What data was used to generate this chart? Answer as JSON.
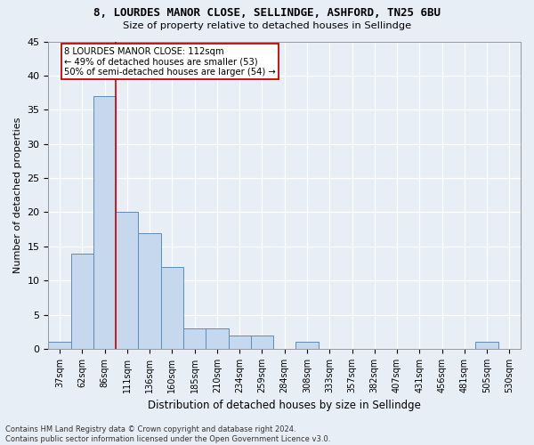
{
  "title1": "8, LOURDES MANOR CLOSE, SELLINDGE, ASHFORD, TN25 6BU",
  "title2": "Size of property relative to detached houses in Sellindge",
  "xlabel": "Distribution of detached houses by size in Sellindge",
  "ylabel": "Number of detached properties",
  "footnote1": "Contains HM Land Registry data © Crown copyright and database right 2024.",
  "footnote2": "Contains public sector information licensed under the Open Government Licence v3.0.",
  "bin_labels": [
    "37sqm",
    "62sqm",
    "86sqm",
    "111sqm",
    "136sqm",
    "160sqm",
    "185sqm",
    "210sqm",
    "234sqm",
    "259sqm",
    "284sqm",
    "308sqm",
    "333sqm",
    "357sqm",
    "382sqm",
    "407sqm",
    "431sqm",
    "456sqm",
    "481sqm",
    "505sqm",
    "530sqm"
  ],
  "values": [
    1,
    14,
    37,
    20,
    17,
    12,
    3,
    3,
    2,
    2,
    0,
    1,
    0,
    0,
    0,
    0,
    0,
    0,
    0,
    1,
    0
  ],
  "bar_color": "#c5d8ed",
  "bar_edge_color": "#5b8db8",
  "background_color": "#e8eef6",
  "grid_color": "#ffffff",
  "annotation_box_color": "#cc0000",
  "annotation_line_color": "#cc0000",
  "annotation_text1": "8 LOURDES MANOR CLOSE: 112sqm",
  "annotation_text2": "← 49% of detached houses are smaller (53)",
  "annotation_text3": "50% of semi-detached houses are larger (54) →",
  "ylim": [
    0,
    45
  ],
  "yticks": [
    0,
    5,
    10,
    15,
    20,
    25,
    30,
    35,
    40,
    45
  ],
  "red_line_x": 2.5
}
